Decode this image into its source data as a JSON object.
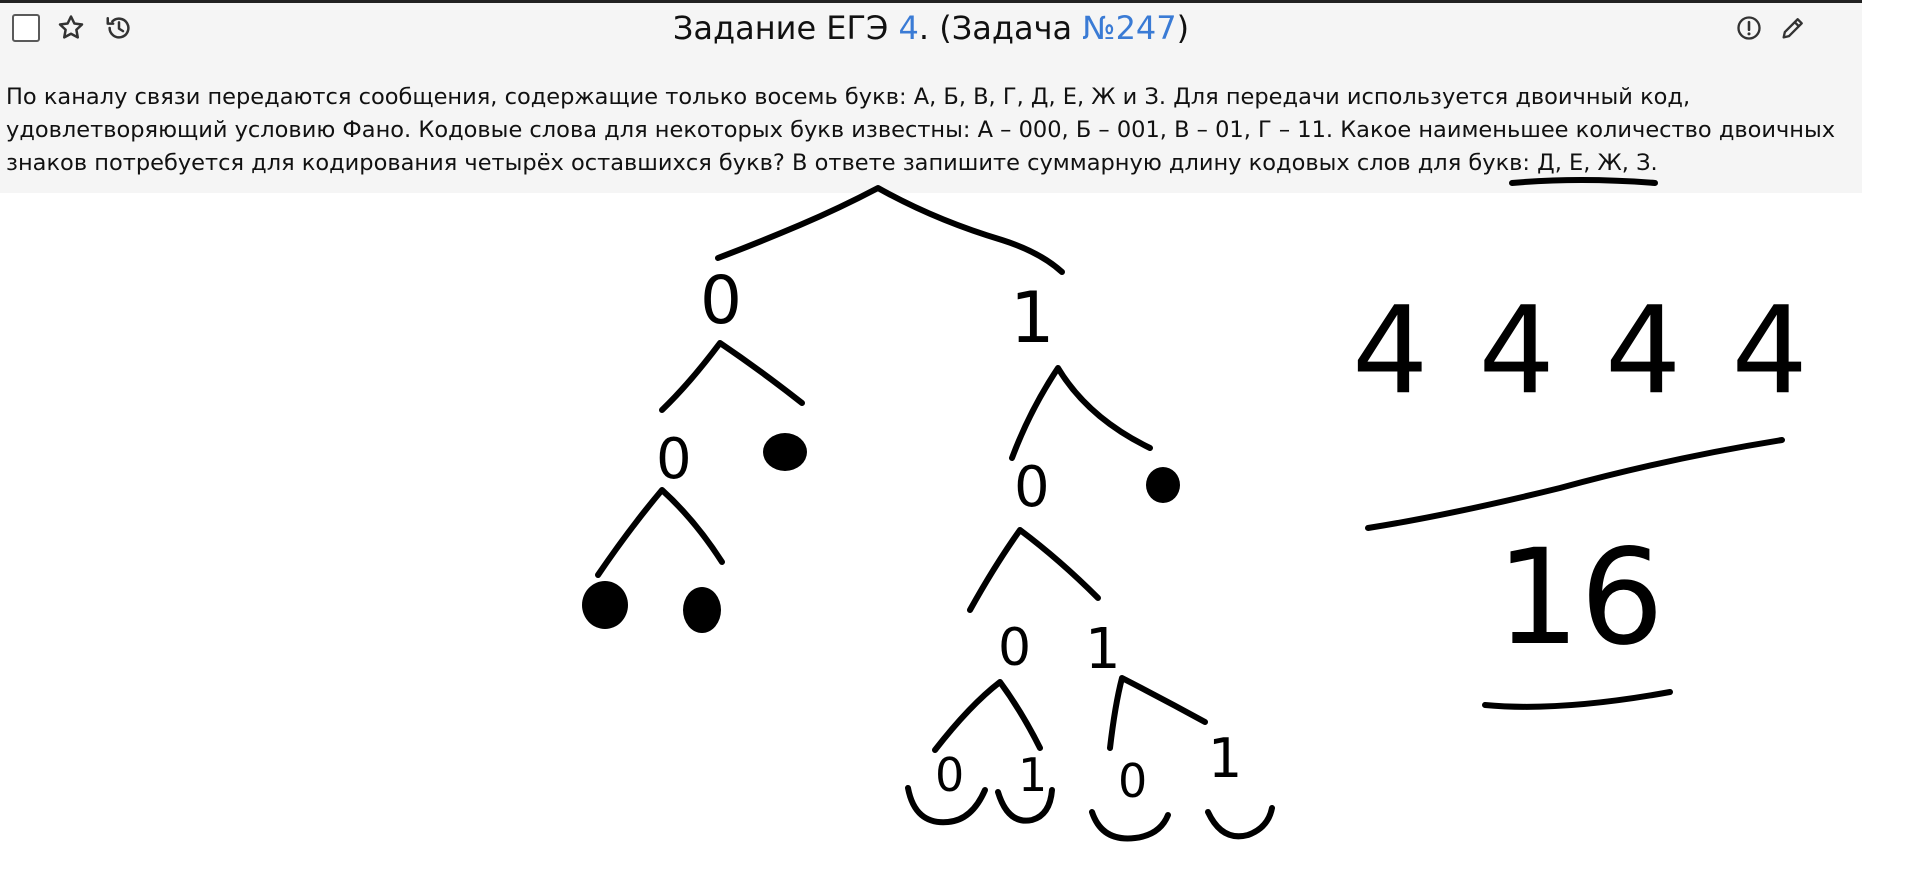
{
  "header": {
    "title_prefix": "Задание ЕГЭ ",
    "task_number": "4",
    "title_middle": ". (Задача ",
    "problem_link": "№247",
    "title_suffix": ")"
  },
  "toolbar": {
    "left_icons": [
      "checkbox",
      "star-icon",
      "history-icon"
    ],
    "right_icons": [
      "report-icon",
      "edit-icon"
    ]
  },
  "problem": {
    "text_main": "По каналу связи передаются сообщения, содержащие только восемь букв: А, Б, В, Г, Д, Е, Ж и З. Для передачи используется двоичный код, удовлетворяющий условию Фано. Кодовые слова для некоторых букв известны: А – 000, Б – 001, В – 01, Г – 11. Какое наименьшее количество двоичных знаков потребуется для кодирования четырёх оставшихся букв? В ответе запишите суммарную длину кодовых слов для букв: ",
    "text_underlined": "Д, Е, Ж, З."
  },
  "handwriting": {
    "lengths": "4 4 4 4",
    "answer": "16",
    "tree_labels": {
      "root_left": "0",
      "root_right": "1",
      "l_left": "0",
      "r_left": "0",
      "rl_left": "0",
      "rl_right": "1",
      "leaf_1": "0",
      "leaf_2": "1",
      "leaf_3": "0",
      "leaf_4": "1"
    }
  },
  "colors": {
    "link": "#3a7bd5",
    "panel": "#f5f5f5",
    "ink": "#000000"
  }
}
